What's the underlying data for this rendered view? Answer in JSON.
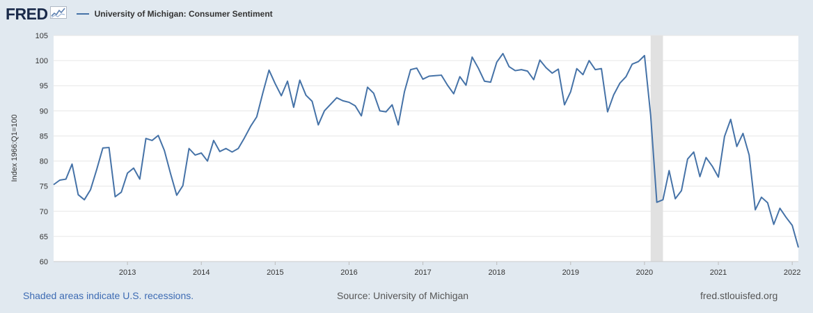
{
  "header": {
    "logo_text": "FRED",
    "logo_icon": "chart-line-icon",
    "series_title": "University of Michigan: Consumer Sentiment"
  },
  "footer": {
    "recession_note": "Shaded areas indicate U.S. recessions.",
    "source": "Source: University of Michigan",
    "site": "fred.stlouisfed.org"
  },
  "colors": {
    "background": "#e1e9f0",
    "plot_background": "#ffffff",
    "series_line": "#4572a7",
    "recession_shade": "#e1e1e1",
    "gridline": "#e6e6e6",
    "link_text": "#3d6bb3"
  },
  "chart_data": {
    "type": "line",
    "title": "University of Michigan: Consumer Sentiment",
    "xlabel": "",
    "ylabel": "Index 1966:Q1=100",
    "ylim": [
      60,
      105
    ],
    "yticks": [
      60,
      65,
      70,
      75,
      80,
      85,
      90,
      95,
      100,
      105
    ],
    "xlim": [
      "2012-01",
      "2022-02"
    ],
    "xticks": [
      "2013",
      "2014",
      "2015",
      "2016",
      "2017",
      "2018",
      "2019",
      "2020",
      "2021",
      "2022"
    ],
    "grid": true,
    "legend": "top-left",
    "recessions": [
      {
        "start": "2020-02",
        "end": "2020-04"
      }
    ],
    "series": [
      {
        "name": "University of Michigan: Consumer Sentiment",
        "color": "#4572a7",
        "start": "2012-01",
        "frequency": "monthly",
        "values": [
          75.3,
          76.2,
          76.4,
          79.4,
          73.3,
          72.3,
          74.3,
          78.3,
          82.6,
          82.7,
          72.9,
          73.8,
          77.6,
          78.6,
          76.4,
          84.5,
          84.1,
          85.1,
          82.1,
          77.5,
          73.2,
          75.1,
          82.5,
          81.2,
          81.6,
          80.0,
          84.1,
          81.9,
          82.5,
          81.8,
          82.5,
          84.6,
          86.9,
          88.8,
          93.6,
          98.1,
          95.4,
          93.0,
          95.9,
          90.7,
          96.1,
          93.1,
          91.9,
          87.2,
          90.0,
          91.3,
          92.6,
          92.0,
          91.7,
          91.0,
          89.0,
          94.7,
          93.5,
          90.0,
          89.8,
          91.2,
          87.2,
          93.8,
          98.2,
          98.5,
          96.3,
          96.9,
          97.0,
          97.1,
          95.1,
          93.4,
          96.8,
          95.1,
          100.7,
          98.5,
          95.9,
          95.7,
          99.7,
          101.4,
          98.8,
          98.0,
          98.2,
          97.9,
          96.2,
          100.1,
          98.6,
          97.5,
          98.3,
          91.2,
          93.8,
          98.4,
          97.2,
          100.0,
          98.2,
          98.4,
          89.8,
          93.2,
          95.5,
          96.8,
          99.3,
          99.8,
          101.0,
          89.1,
          71.8,
          72.3,
          78.1,
          72.5,
          74.1,
          80.4,
          81.8,
          76.9,
          80.7,
          79.0,
          76.8,
          84.9,
          88.3,
          82.9,
          85.5,
          81.2,
          70.3,
          72.8,
          71.7,
          67.4,
          70.6,
          68.8,
          67.2,
          62.8
        ]
      }
    ]
  }
}
